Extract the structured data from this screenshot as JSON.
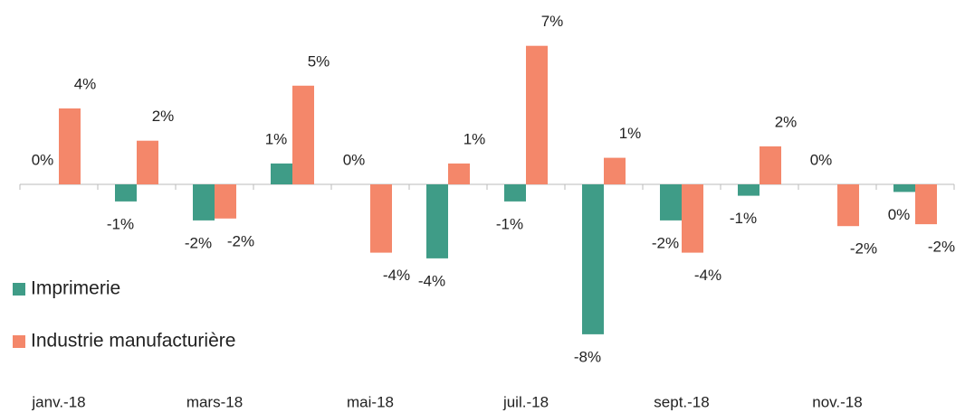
{
  "chart_data": {
    "type": "bar",
    "categories": [
      "janv.-18",
      null,
      "mars-18",
      null,
      "mai-18",
      null,
      "juil.-18",
      null,
      "sept.-18",
      null,
      "nov.-18",
      null
    ],
    "series": [
      {
        "name": "Imprimerie",
        "color": "#3f9c87",
        "values": [
          0,
          -0.9,
          -1.9,
          1.1,
          0,
          -3.9,
          -0.9,
          -7.9,
          -1.9,
          -0.6,
          0,
          -0.4
        ],
        "value_labels": [
          "0%",
          "-1%",
          "-2%",
          "1%",
          "0%",
          "-4%",
          "-1%",
          "-8%",
          "-2%",
          "-1%",
          "0%",
          "0%"
        ]
      },
      {
        "name": "Industrie manufacturière",
        "color": "#f4876a",
        "values": [
          4,
          2.3,
          -1.8,
          5.2,
          -3.6,
          1.1,
          7.3,
          1.4,
          -3.6,
          2,
          -2.2,
          -2.1
        ],
        "value_labels": [
          "4%",
          "2%",
          "-2%",
          "5%",
          "-4%",
          "1%",
          "7%",
          "1%",
          "-4%",
          "2%",
          "-2%",
          "-2%"
        ]
      }
    ],
    "legend": "left"
  }
}
